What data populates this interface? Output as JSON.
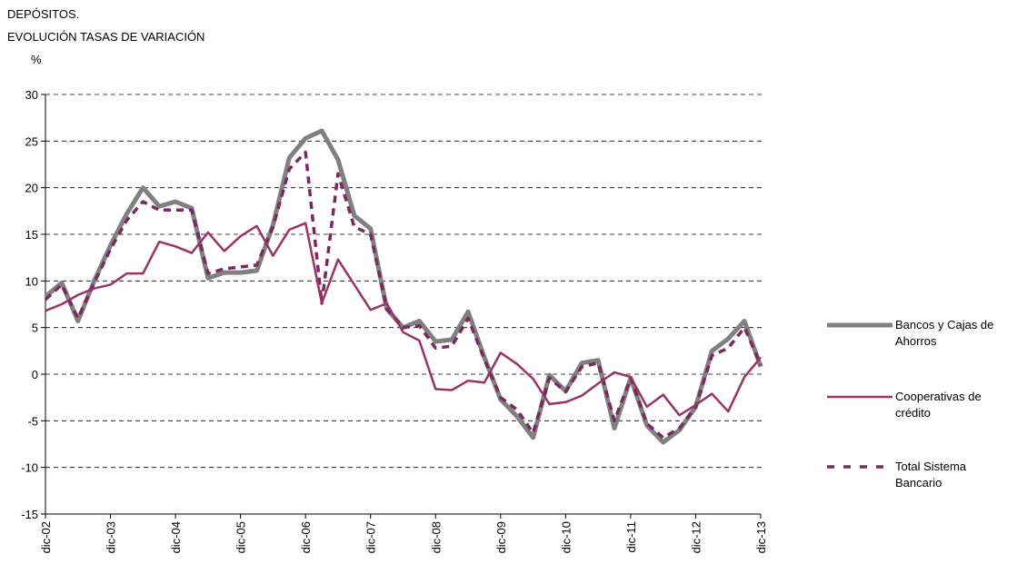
{
  "chart_data": {
    "type": "line",
    "title": "DEPÓSITOS.",
    "subtitle": "EVOLUCIÓN TASAS DE VARIACIÓN",
    "y_label": "%",
    "categories": [
      "dic-02",
      null,
      null,
      null,
      "dic-03",
      null,
      null,
      null,
      "dic-04",
      null,
      null,
      null,
      "dic-05",
      null,
      null,
      null,
      "dic-06",
      null,
      null,
      null,
      "dic-07",
      null,
      null,
      null,
      "dic-08",
      null,
      null,
      null,
      "dic-09",
      null,
      null,
      null,
      "dic-10",
      null,
      null,
      null,
      "dic-11",
      null,
      null,
      null,
      "dic-12",
      null,
      null,
      null,
      "dic-13"
    ],
    "series": [
      {
        "name": "Bancos y Cajas de Ahorros",
        "color": "#808080",
        "line_style": "solid",
        "line_width": 5,
        "values": [
          8.3,
          9.8,
          5.7,
          10,
          13.8,
          17.2,
          20,
          18,
          18.5,
          17.8,
          10.3,
          10.9,
          10.9,
          11.1,
          16,
          23.2,
          25.3,
          26.1,
          23,
          17,
          15.6,
          7,
          5,
          5.7,
          3.5,
          3.7,
          6.7,
          1.8,
          -2.7,
          -4.5,
          -6.8,
          -0.1,
          -1.8,
          1.2,
          1.5,
          -5.8,
          -0.4,
          -5.5,
          -7.3,
          -6,
          -3.5,
          2.5,
          3.8,
          5.7,
          0.8
        ]
      },
      {
        "name": "Cooperativas de crédito",
        "color": "#993366",
        "line_style": "solid",
        "line_width": 2.5,
        "values": [
          6.8,
          7.5,
          8.5,
          9.2,
          9.6,
          10.8,
          10.8,
          14.2,
          13.7,
          13,
          15.2,
          13.2,
          14.8,
          15.9,
          12.7,
          15.5,
          16.2,
          7.6,
          12.3,
          9.6,
          6.9,
          7.6,
          4.5,
          3.6,
          -1.6,
          -1.7,
          -0.7,
          -0.9,
          2.3,
          1.1,
          -0.5,
          -3.2,
          -3,
          -2.3,
          -1,
          0.2,
          -0.3,
          -3.5,
          -2.2,
          -4.4,
          -3.3,
          -2.1,
          -4,
          -0.3,
          1.8
        ]
      },
      {
        "name": "Total Sistema Bancario",
        "color": "#7a2a5e",
        "line_style": "dashed",
        "line_width": 3.5,
        "values": [
          8,
          9.6,
          6,
          9.8,
          13.4,
          16.5,
          18.5,
          17.6,
          17.6,
          17.6,
          10.8,
          11.3,
          11.5,
          11.7,
          15.8,
          22,
          23.8,
          7.6,
          21.5,
          15.8,
          15,
          7,
          5,
          5.2,
          2.8,
          3,
          6,
          1.6,
          -2.5,
          -3.8,
          -6.3,
          -0.4,
          -1.9,
          0.8,
          1.2,
          -5,
          -0.4,
          -5.3,
          -6.8,
          -5.8,
          -3.5,
          2,
          2.8,
          5,
          1
        ]
      }
    ],
    "ylim": [
      -15,
      30
    ],
    "yticks": [
      -15,
      -10,
      -5,
      0,
      5,
      10,
      15,
      20,
      25,
      30
    ],
    "grid": true,
    "legend": "right"
  }
}
